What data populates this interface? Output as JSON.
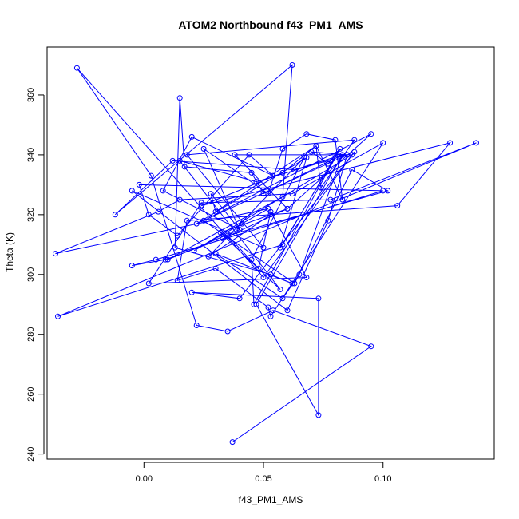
{
  "chart_data": {
    "type": "line",
    "title": "ATOM2 Northbound f43_PM1_AMS",
    "xlabel": "f43_PM1_AMS",
    "ylabel": "Theta (K)",
    "xlim": [
      -0.0405,
      0.1465
    ],
    "ylim": [
      238.3,
      376.0
    ],
    "x_ticks": [
      "0.00",
      "0.05",
      "0.10"
    ],
    "y_ticks": [
      "240",
      "260",
      "280",
      "300",
      "320",
      "340",
      "360"
    ],
    "grid": false,
    "marker": "open-circle",
    "series": [
      {
        "color": "#0000ff",
        "x": [
          0.037,
          0.095,
          0.054,
          0.035,
          0.022,
          0.003,
          -0.028,
          0.05,
          0.088,
          0.04,
          0.02,
          0.073,
          0.073,
          0.047,
          0.083,
          0.065,
          0.058,
          0.03,
          0.062,
          0.053,
          0.013,
          0.015,
          0.017,
          0.045,
          0.05,
          0.083,
          0.063,
          0.012,
          -0.012,
          0.062,
          0.058,
          0.01,
          0.04,
          0.025,
          0.052,
          0.058,
          0.068,
          0.08,
          0.083,
          0.072,
          0.03,
          0.028,
          0.04,
          0.008,
          0.02,
          0.054,
          0.044,
          0.014,
          0.002,
          -0.002,
          0.1,
          0.005,
          -0.005,
          0.009,
          0.033,
          0.06,
          0.032,
          0.057,
          0.015,
          0.047,
          0.085,
          0.077,
          0.06,
          -0.005,
          0.05,
          0.018,
          0.088,
          0.074,
          0.072,
          0.058,
          0.024,
          0.128,
          0.106,
          0.018,
          0.014,
          0.03,
          0.052,
          0.053,
          0.1,
          0.062,
          0.015,
          0.006,
          -0.037,
          0.052,
          0.041,
          0.021,
          0.087,
          0.038,
          0.06,
          0.095,
          0.025,
          0.063,
          0.087,
          0.102,
          0.035,
          0.048,
          0.053,
          0.068,
          0.002,
          0.024,
          0.078,
          0.139,
          -0.036,
          0.058,
          0.082,
          0.077,
          0.07,
          0.085,
          0.022,
          0.068,
          0.057,
          0.08,
          0.046,
          0.045,
          0.067,
          0.027,
          0.053
        ],
        "y": [
          244,
          276,
          288,
          281,
          283,
          333,
          369,
          299,
          341,
          292,
          294,
          292,
          253,
          290,
          340,
          300,
          292,
          307,
          297,
          300,
          309,
          359,
          336,
          334,
          327,
          340,
          335,
          338,
          320,
          370,
          326,
          305,
          315,
          342,
          327,
          342,
          347,
          345,
          325,
          343,
          321,
          327,
          315,
          328,
          346,
          333,
          340,
          313,
          320,
          330,
          328,
          305,
          303,
          305,
          312,
          322,
          314,
          295,
          338,
          331,
          340,
          318,
          288,
          328,
          309,
          340,
          345,
          329,
          343,
          334,
          323,
          344,
          323,
          318,
          298,
          302,
          289,
          286,
          344,
          327,
          325,
          321,
          307,
          322,
          317,
          308,
          340,
          340,
          322,
          347,
          318,
          297,
          335,
          328,
          313,
          302,
          321,
          299,
          297,
          324,
          325,
          344,
          286,
          310,
          342,
          337,
          341,
          340,
          317,
          339,
          309,
          339,
          290,
          305,
          339,
          306,
          320
        ]
      }
    ]
  }
}
